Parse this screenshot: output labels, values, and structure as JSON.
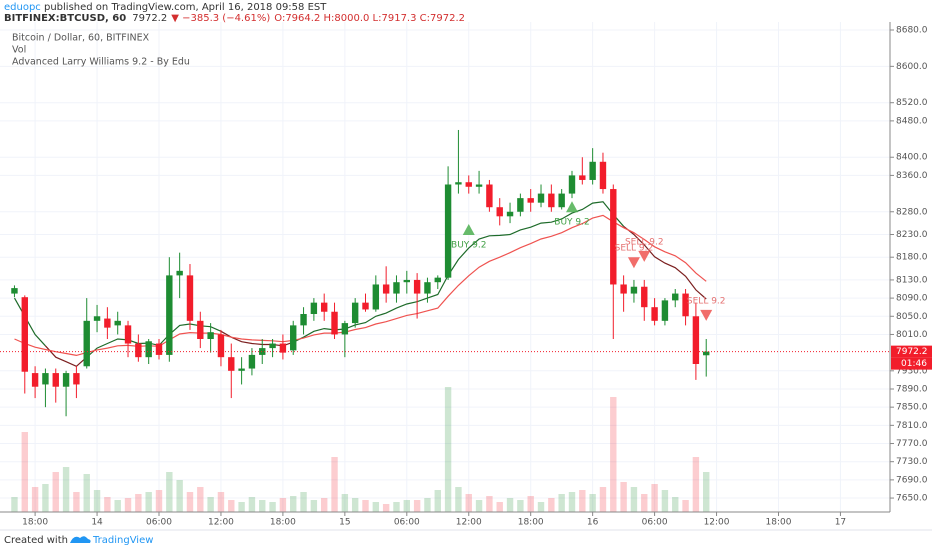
{
  "header": {
    "user": "eduopc",
    "published": " published on TradingView.com, April 16, 2018 09:58 EST",
    "symbol": "BITFINEX:BTCUSD, 60",
    "last": "7972.2",
    "change": "▼ −385.3 (−4.61%)",
    "ohlc": "O:7964.2 H:8000.0 L:7917.3 C:7972.2"
  },
  "legend": [
    "Bitcoin / Dollar, 60, BITFINEX",
    "Vol",
    "Advanced Larry Williams 9.2 - By Edu"
  ],
  "footer": {
    "created": "Created with",
    "brand": "TradingView"
  },
  "chart_data": {
    "type": "candlestick",
    "countdown": "01:46",
    "xlim": [
      -3.4,
      82.8
    ],
    "ylim": [
      7619.3,
      8697.6
    ],
    "grid": true,
    "up_color": "#1e8c32",
    "down_color": "#f21d2b",
    "xticks": [
      {
        "value": 0,
        "label": "18:00"
      },
      {
        "value": 6,
        "label": "14"
      },
      {
        "value": 12,
        "label": "06:00"
      },
      {
        "value": 18,
        "label": "12:00"
      },
      {
        "value": 24,
        "label": "18:00"
      },
      {
        "value": 30,
        "label": "15"
      },
      {
        "value": 36,
        "label": "06:00"
      },
      {
        "value": 42,
        "label": "12:00"
      },
      {
        "value": 48,
        "label": "18:00"
      },
      {
        "value": 54,
        "label": "16"
      },
      {
        "value": 60,
        "label": "06:00"
      },
      {
        "value": 66,
        "label": "12:00"
      },
      {
        "value": 72,
        "label": "18:00"
      },
      {
        "value": 78,
        "label": "17"
      }
    ],
    "yticks": [
      {
        "value": 8680,
        "label": "8680.0"
      },
      {
        "value": 8600,
        "label": "8600.0"
      },
      {
        "value": 8520,
        "label": "8520.0"
      },
      {
        "value": 8480,
        "label": "8480.0"
      },
      {
        "value": 8400,
        "label": "8400.0"
      },
      {
        "value": 8360,
        "label": "8360.0"
      },
      {
        "value": 8280,
        "label": "8280.0"
      },
      {
        "value": 8230,
        "label": "8230.0"
      },
      {
        "value": 8180,
        "label": "8180.0"
      },
      {
        "value": 8130,
        "label": "8130.0"
      },
      {
        "value": 8090,
        "label": "8090.0"
      },
      {
        "value": 8050,
        "label": "8050.0"
      },
      {
        "value": 8010,
        "label": "8010.0"
      },
      {
        "value": 7930,
        "label": "7930.0"
      },
      {
        "value": 7890,
        "label": "7890.0"
      },
      {
        "value": 7850,
        "label": "7850.0"
      },
      {
        "value": 7810,
        "label": "7810.0"
      },
      {
        "value": 7770,
        "label": "7770.0"
      },
      {
        "value": 7730,
        "label": "7730.0"
      },
      {
        "value": 7690,
        "label": "7690.0"
      },
      {
        "value": 7650,
        "label": "7650.0"
      }
    ],
    "x": [
      -2,
      -1,
      0,
      1,
      2,
      3,
      4,
      5,
      6,
      7,
      8,
      9,
      10,
      11,
      12,
      13,
      14,
      15,
      16,
      17,
      18,
      19,
      20,
      21,
      22,
      23,
      24,
      25,
      26,
      27,
      28,
      29,
      30,
      31,
      32,
      33,
      34,
      35,
      36,
      37,
      38,
      39,
      40,
      41,
      42,
      43,
      44,
      45,
      46,
      47,
      48,
      49,
      50,
      51,
      52,
      53,
      54,
      55,
      56,
      57,
      58,
      59,
      60,
      61,
      62,
      63,
      64,
      65
    ],
    "open": [
      8100,
      8092,
      7925,
      7900,
      7925,
      7895,
      7925,
      7940,
      8040,
      8045,
      8030,
      8030,
      7990,
      7960,
      7990,
      7965,
      8140,
      8140,
      8040,
      8000,
      8010,
      7960,
      7930,
      7935,
      7965,
      7980,
      7990,
      7975,
      8030,
      8055,
      8080,
      8060,
      8010,
      8035,
      8080,
      8065,
      8120,
      8100,
      8125,
      8130,
      8100,
      8125,
      8135,
      8340,
      8345,
      8335,
      8340,
      8290,
      8270,
      8280,
      8310,
      8300,
      8320,
      8290,
      8320,
      8360,
      8350,
      8390,
      8330,
      8120,
      8100,
      8115,
      8070,
      8040,
      8085,
      8100,
      8050,
      7964.2
    ],
    "high": [
      8118,
      8096,
      7940,
      7935,
      7935,
      7930,
      7940,
      8090,
      8075,
      8070,
      8060,
      8040,
      8010,
      8000,
      8000,
      8180,
      8190,
      8165,
      8060,
      8035,
      8020,
      7990,
      7960,
      7980,
      8000,
      8000,
      8010,
      8040,
      8070,
      8090,
      8100,
      8080,
      8040,
      8090,
      8100,
      8140,
      8160,
      8140,
      8150,
      8145,
      8135,
      8140,
      8380,
      8460,
      8360,
      8370,
      8350,
      8310,
      8300,
      8320,
      8330,
      8340,
      8340,
      8330,
      8370,
      8400,
      8420,
      8410,
      8340,
      8140,
      8130,
      8130,
      8090,
      8090,
      8110,
      8110,
      8080,
      8000
    ],
    "low": [
      8092,
      7880,
      7870,
      7850,
      7860,
      7830,
      7870,
      7935,
      8015,
      8000,
      8010,
      7960,
      7950,
      7945,
      7955,
      7950,
      8090,
      8020,
      7980,
      7970,
      7940,
      7870,
      7900,
      7920,
      7945,
      7960,
      7955,
      7965,
      8010,
      8040,
      8040,
      8000,
      7960,
      8025,
      8060,
      8060,
      8080,
      8080,
      8100,
      8045,
      8080,
      8110,
      8130,
      8320,
      8320,
      8320,
      8280,
      8250,
      8255,
      8270,
      8280,
      8290,
      8280,
      8285,
      8310,
      8340,
      8340,
      8320,
      8000,
      8060,
      8080,
      8040,
      8030,
      8030,
      8070,
      8030,
      7910,
      7917.3
    ],
    "close": [
      8112,
      7928,
      7895,
      7925,
      7895,
      7925,
      7900,
      8040,
      8050,
      8025,
      8040,
      7990,
      7960,
      7995,
      7965,
      8140,
      8150,
      8040,
      8000,
      8015,
      7960,
      7930,
      7935,
      7965,
      7980,
      7990,
      7970,
      8030,
      8055,
      8080,
      8060,
      8010,
      8035,
      8080,
      8065,
      8120,
      8100,
      8125,
      8130,
      8100,
      8125,
      8135,
      8340,
      8345,
      8335,
      8340,
      8290,
      8270,
      8280,
      8310,
      8300,
      8320,
      8290,
      8320,
      8360,
      8350,
      8390,
      8330,
      8120,
      8100,
      8115,
      8070,
      8040,
      8085,
      8100,
      8050,
      7945,
      7972.2
    ],
    "volume": [
      15,
      80,
      25,
      28,
      40,
      45,
      20,
      38,
      22,
      15,
      12,
      14,
      18,
      20,
      22,
      40,
      32,
      20,
      25,
      15,
      20,
      12,
      10,
      15,
      12,
      10,
      14,
      16,
      20,
      12,
      14,
      55,
      18,
      14,
      12,
      10,
      8,
      10,
      12,
      12,
      14,
      22,
      125,
      25,
      18,
      12,
      16,
      10,
      14,
      12,
      16,
      10,
      14,
      18,
      20,
      22,
      18,
      25,
      115,
      30,
      25,
      18,
      28,
      22,
      15,
      12,
      55,
      40
    ],
    "series": [
      {
        "color": "#7b1f1f",
        "up_color": "#1e6b2a",
        "values": [
          8090,
          8050,
          8010,
          7985,
          7960,
          7950,
          7940,
          7960,
          7980,
          7990,
          8000,
          7998,
          7990,
          7991,
          7986,
          8010,
          8030,
          8033,
          8029,
          8027,
          8017,
          8004,
          7994,
          7990,
          7988,
          7988,
          7985,
          7993,
          8004,
          8017,
          8023,
          8020,
          8022,
          8031,
          8036,
          8050,
          8057,
          8068,
          8077,
          8082,
          8090,
          8098,
          8140,
          8175,
          8200,
          8220,
          8227,
          8228,
          8230,
          8240,
          8246,
          8255,
          8257,
          8264,
          8277,
          8285,
          8299,
          8302,
          8274,
          8248,
          8230,
          8207,
          8181,
          8167,
          8157,
          8138,
          8108,
          8088
        ]
      },
      {
        "color": "#ef5350",
        "values": [
          8000,
          7990,
          7982,
          7977,
          7972,
          7968,
          7964,
          7970,
          7976,
          7980,
          7985,
          7986,
          7984,
          7985,
          7984,
          7998,
          8011,
          8014,
          8013,
          8013,
          8010,
          8004,
          8000,
          7998,
          7997,
          7996,
          7994,
          7997,
          8002,
          8009,
          8013,
          8013,
          8015,
          8021,
          8025,
          8033,
          8038,
          8045,
          8052,
          8056,
          8062,
          8068,
          8094,
          8118,
          8139,
          8158,
          8171,
          8180,
          8190,
          8201,
          8210,
          8220,
          8226,
          8234,
          8245,
          8254,
          8266,
          8272,
          8258,
          8245,
          8234,
          8219,
          8203,
          8192,
          8183,
          8168,
          8145,
          8127
        ]
      }
    ],
    "signals": [
      {
        "kind": "buy",
        "x": 42,
        "price": 8240,
        "label": "BUY 9.2"
      },
      {
        "kind": "buy",
        "x": 52,
        "price": 8290,
        "label": "BUY 9.2"
      },
      {
        "kind": "sell",
        "x": 58,
        "price": 8169,
        "label": "SELL 9.2"
      },
      {
        "kind": "sell",
        "x": 59,
        "price": 8183,
        "label": "SELL 9.2"
      },
      {
        "kind": "sell",
        "x": 65,
        "price": 8053,
        "label": "SELL 9.2"
      }
    ]
  }
}
